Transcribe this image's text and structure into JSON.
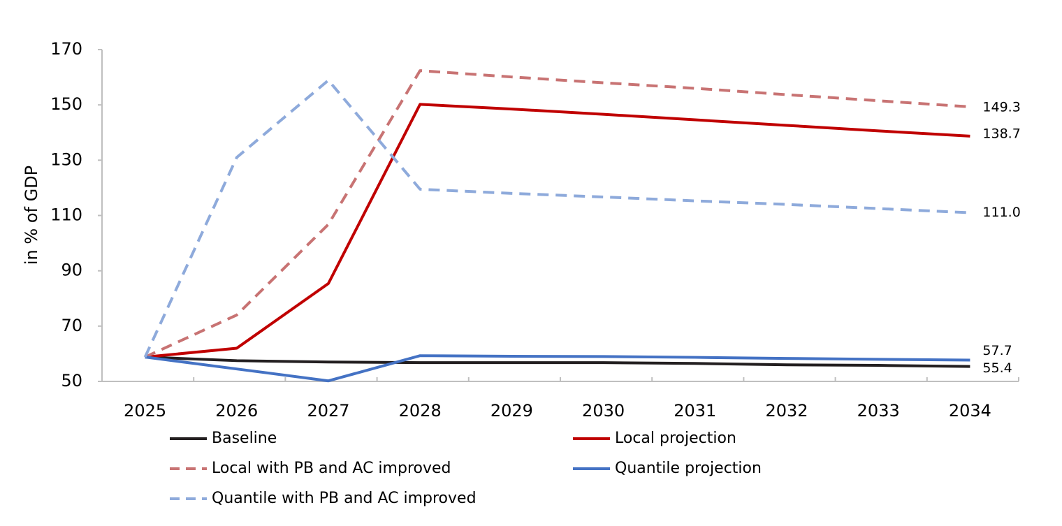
{
  "chart_data": {
    "type": "line",
    "y_label": "in % of GDP",
    "categories": [
      "2025",
      "2026",
      "2027",
      "2028",
      "2029",
      "2030",
      "2031",
      "2032",
      "2033",
      "2034"
    ],
    "ylim": [
      50,
      170
    ],
    "yticks": [
      50,
      70,
      90,
      110,
      130,
      150,
      170
    ],
    "grid": false,
    "series": [
      {
        "name": "Baseline",
        "color": "#231f20",
        "line_style": "solid",
        "values": [
          58.8,
          57.5,
          57.0,
          56.8,
          56.8,
          56.8,
          56.5,
          56.0,
          55.8,
          55.4
        ],
        "value_labels": [
          null,
          null,
          null,
          null,
          null,
          null,
          null,
          null,
          null,
          "55.4"
        ]
      },
      {
        "name": "Local projection",
        "color": "#c00000",
        "line_style": "solid",
        "values": [
          58.8,
          62.0,
          85.4,
          150.2,
          148.5,
          146.6,
          144.6,
          142.6,
          140.6,
          138.7
        ],
        "value_labels": [
          null,
          null,
          null,
          null,
          null,
          null,
          null,
          null,
          null,
          "138.7"
        ]
      },
      {
        "name": "Local with PB and AC improved",
        "color": "#c87373",
        "line_style": "dashed",
        "values": [
          58.8,
          74.0,
          106.8,
          162.4,
          160.1,
          158.0,
          156.0,
          153.7,
          151.5,
          149.3
        ],
        "value_labels": [
          null,
          null,
          null,
          null,
          null,
          null,
          null,
          null,
          null,
          "149.3"
        ]
      },
      {
        "name": "Quantile projection",
        "color": "#4472c4",
        "line_style": "solid",
        "values": [
          58.8,
          54.5,
          50.2,
          59.3,
          59.1,
          59.0,
          58.7,
          58.3,
          58.0,
          57.7
        ],
        "value_labels": [
          null,
          null,
          null,
          null,
          null,
          null,
          null,
          null,
          null,
          "57.7"
        ]
      },
      {
        "name": "Quantile with PB and AC improved",
        "color": "#8eaadb",
        "line_style": "dashed",
        "values": [
          58.8,
          131.0,
          158.9,
          119.5,
          118.0,
          116.7,
          115.3,
          114.0,
          112.5,
          111.0
        ],
        "value_labels": [
          null,
          null,
          null,
          null,
          null,
          null,
          null,
          null,
          null,
          "111.0"
        ]
      }
    ]
  }
}
